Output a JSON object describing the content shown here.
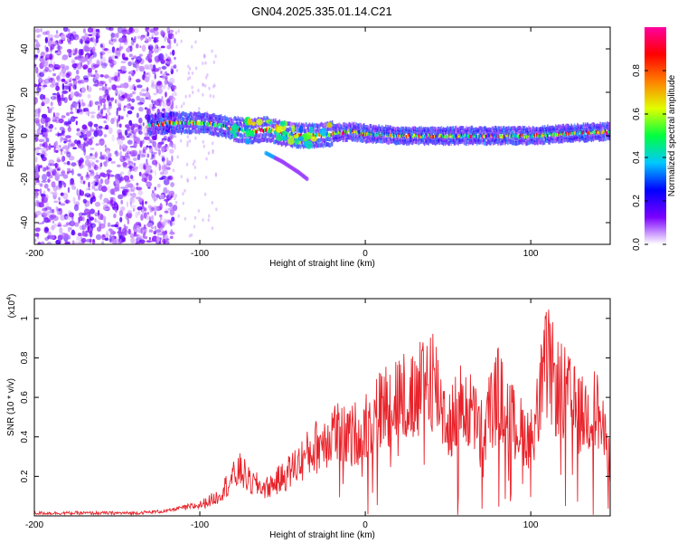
{
  "title": "GN04.2025.335.01.14.C21",
  "chart_data": [
    {
      "type": "heatmap",
      "xlabel": "Height of straight line (km)",
      "ylabel": "Frequency (Hz)",
      "xlim": [
        -200,
        148
      ],
      "ylim": [
        -50,
        50
      ],
      "xticks": [
        -200,
        -100,
        0,
        100
      ],
      "yticks": [
        -40,
        -20,
        0,
        20,
        40
      ],
      "colorbar": {
        "label": "Normalized spectral amplitude",
        "range": [
          0,
          1
        ],
        "ticks": [
          "0.0",
          "0.2",
          "0.4",
          "0.6",
          "0.8"
        ],
        "tick_values": [
          0.0,
          0.2,
          0.4,
          0.6,
          0.8
        ],
        "colors": [
          "#ffffff",
          "#7b00ff",
          "#0000ff",
          "#00c8ff",
          "#00ff40",
          "#e0ff00",
          "#ff8000",
          "#ff0000",
          "#ff00a0"
        ]
      },
      "ridge": {
        "description_values": "main signal band frequency vs height",
        "x": [
          -130,
          -120,
          -110,
          -100,
          -90,
          -80,
          -70,
          -60,
          -50,
          -40,
          -30,
          -20,
          -10,
          0,
          20,
          40,
          60,
          80,
          100,
          120,
          148
        ],
        "y": [
          5,
          6,
          6,
          6,
          5,
          3,
          2,
          3,
          1,
          0,
          0,
          1,
          2,
          1,
          0,
          0,
          0,
          0,
          0,
          1,
          2
        ]
      },
      "secondary_branch": {
        "x": [
          -60,
          -50,
          -40,
          -35
        ],
        "y": [
          -8,
          -12,
          -17,
          -20
        ]
      },
      "noise_region_x": [
        -200,
        -120
      ]
    },
    {
      "type": "line",
      "xlabel": "Height of straight line (km)",
      "ylabel": "SNR (10 * v/v)",
      "yscale_label": "(x10",
      "yscale_exp": "4",
      "yscale_close": ")",
      "xlim": [
        -200,
        148
      ],
      "ylim": [
        0,
        1.1
      ],
      "xticks": [
        -200,
        -100,
        0,
        100
      ],
      "yticks": [
        0.2,
        0.4,
        0.6,
        0.8,
        1
      ],
      "ytick_labels": [
        "0.2",
        "0.4",
        "0.6",
        "0.8",
        "1"
      ],
      "series_color": "#e8232a",
      "envelope": {
        "x": [
          -200,
          -140,
          -120,
          -100,
          -90,
          -80,
          -75,
          -70,
          -60,
          -50,
          -40,
          -30,
          -20,
          -10,
          0,
          10,
          20,
          30,
          40,
          50,
          60,
          70,
          80,
          90,
          100,
          110,
          115,
          120,
          130,
          140,
          148
        ],
        "y": [
          0.02,
          0.02,
          0.03,
          0.07,
          0.12,
          0.25,
          0.3,
          0.22,
          0.18,
          0.25,
          0.35,
          0.45,
          0.55,
          0.5,
          0.6,
          0.7,
          0.8,
          0.75,
          0.95,
          0.6,
          0.75,
          0.55,
          0.8,
          0.6,
          0.5,
          1.0,
          0.85,
          0.8,
          0.65,
          0.7,
          0.35
        ]
      }
    }
  ]
}
